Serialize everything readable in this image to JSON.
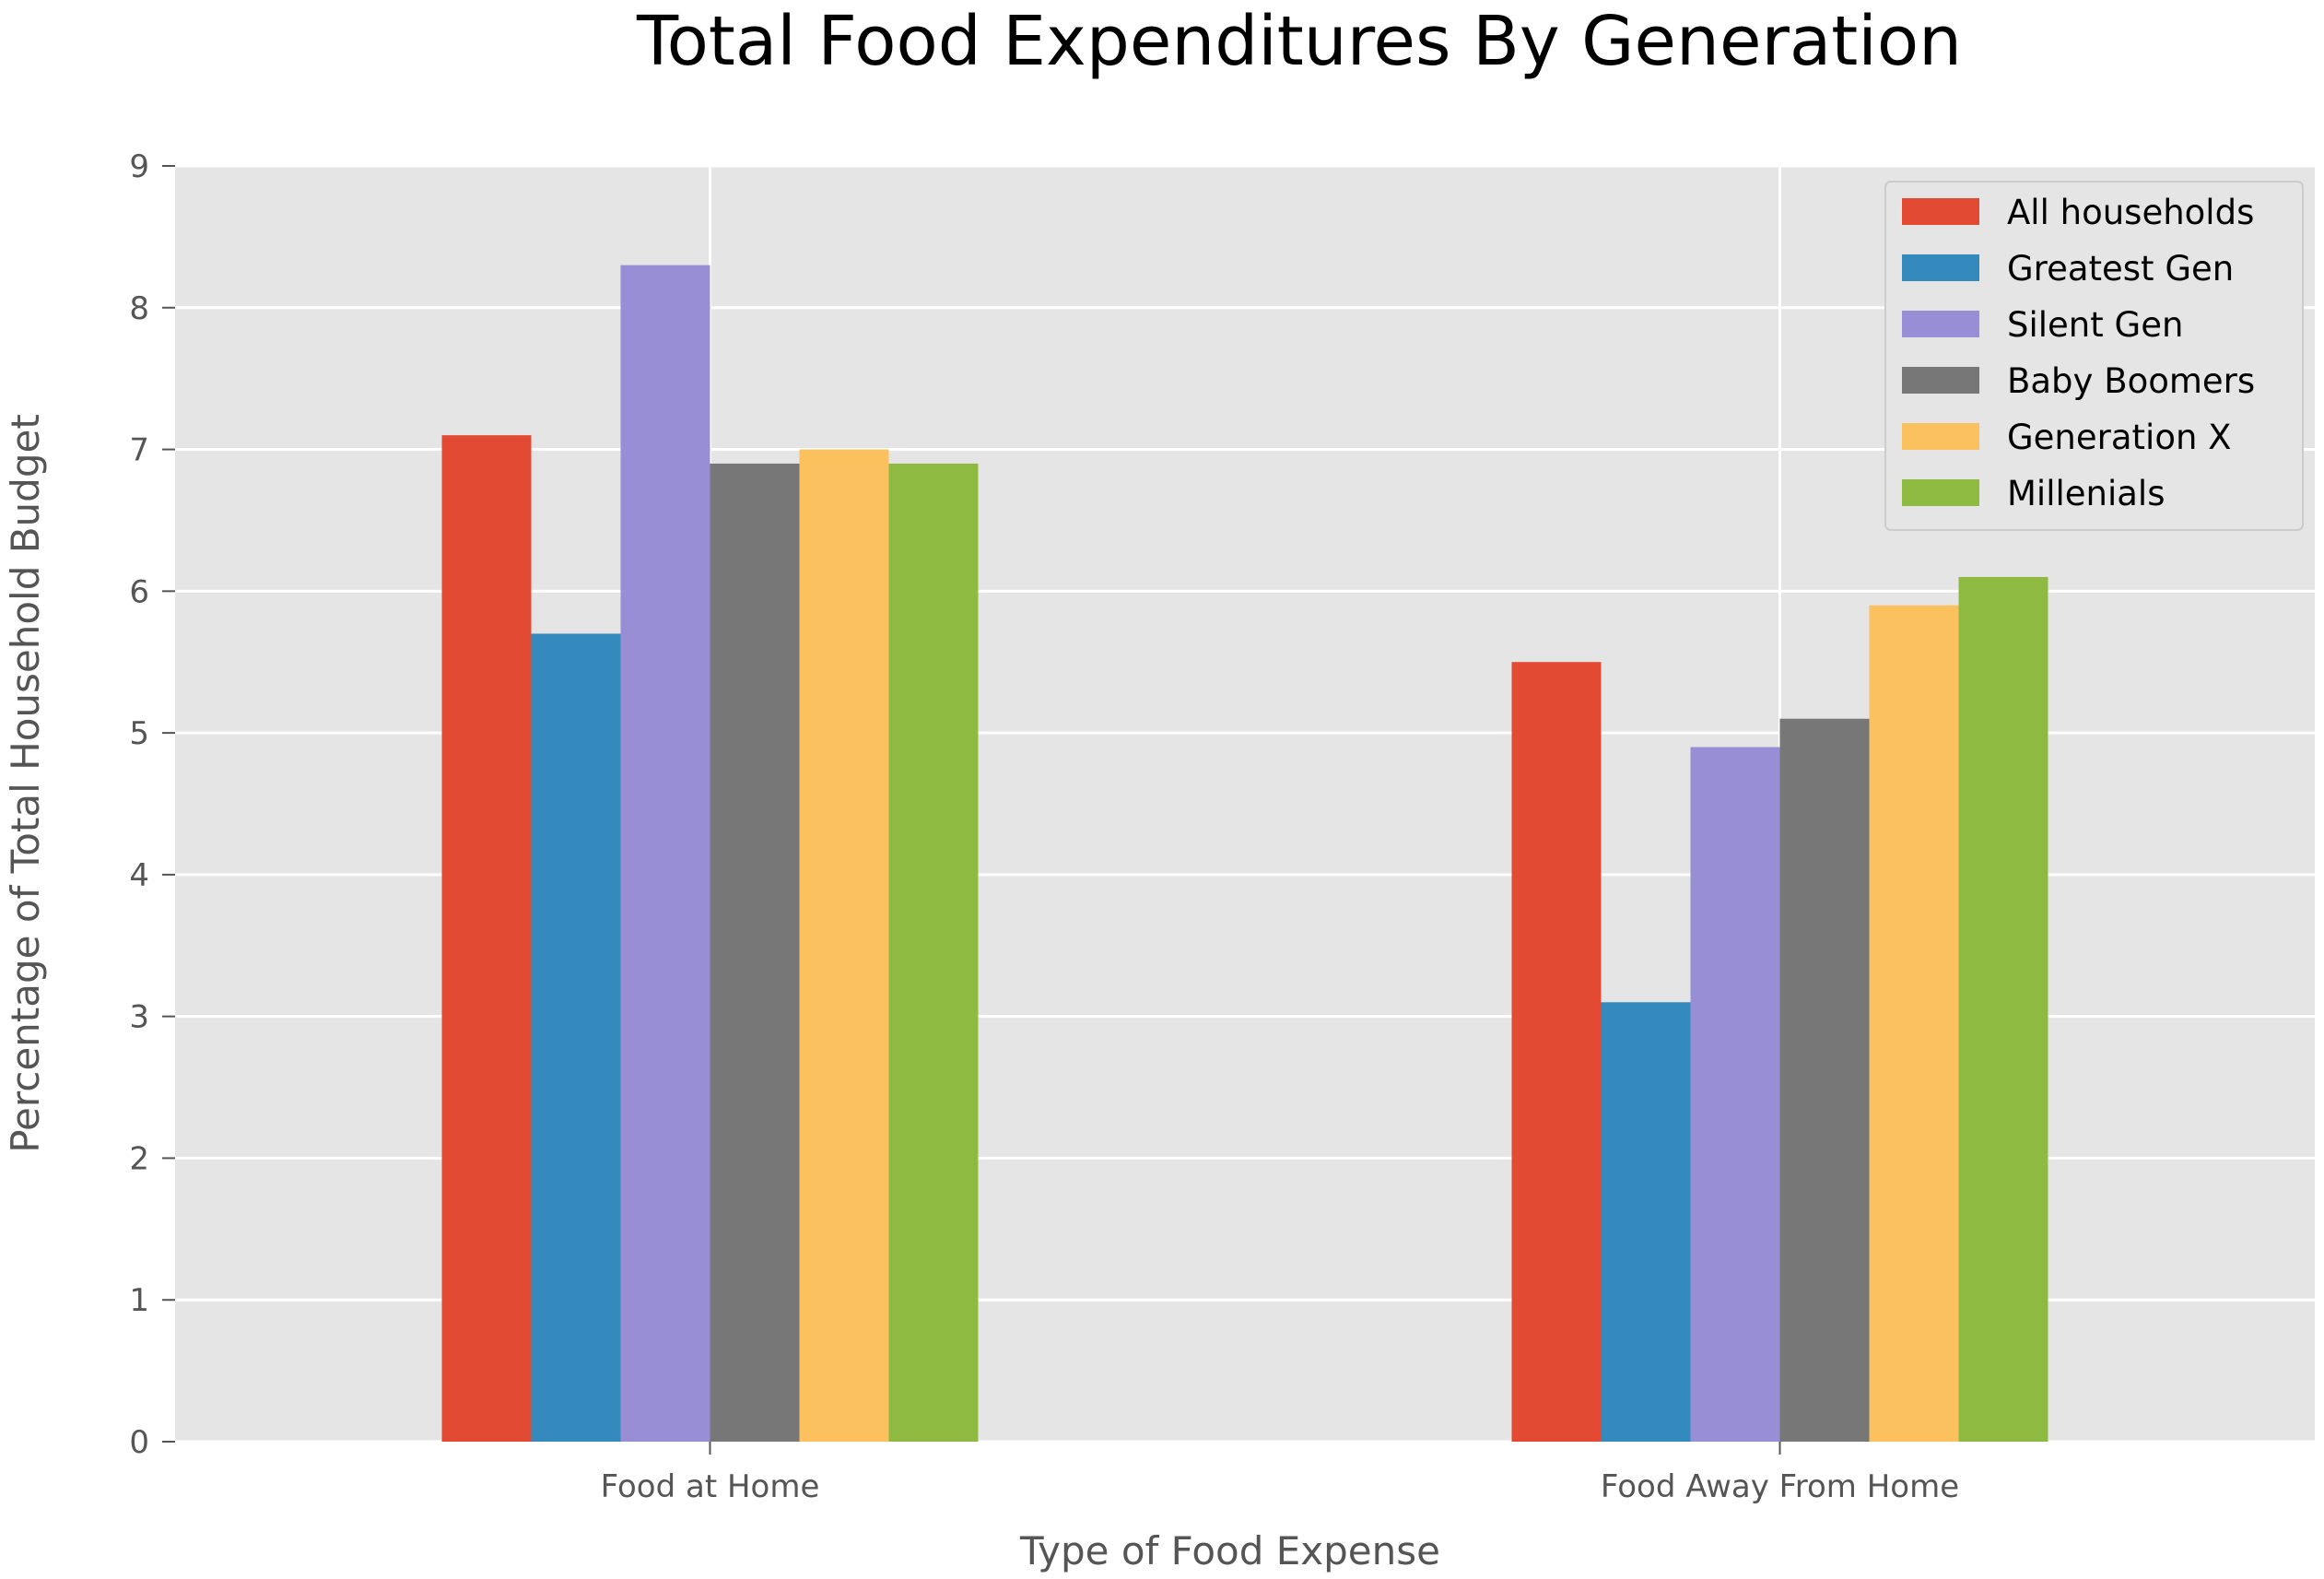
{
  "chart_data": {
    "type": "bar",
    "title": "Total Food Expenditures By Generation",
    "xlabel": "Type of Food Expense",
    "ylabel": "Percentage of Total Household Budget",
    "categories": [
      "Food at Home",
      "Food Away From Home"
    ],
    "series": [
      {
        "name": "All households",
        "color": "#e24a33",
        "values": [
          7.1,
          5.5
        ]
      },
      {
        "name": "Greatest Gen",
        "color": "#348abd",
        "values": [
          5.7,
          3.1
        ]
      },
      {
        "name": "Silent Gen",
        "color": "#988ed5",
        "values": [
          8.3,
          4.9
        ]
      },
      {
        "name": "Baby Boomers",
        "color": "#777777",
        "values": [
          6.9,
          5.1
        ]
      },
      {
        "name": "Generation X",
        "color": "#fbc15e",
        "values": [
          7.0,
          5.9
        ]
      },
      {
        "name": "Millenials",
        "color": "#8eba42",
        "values": [
          6.9,
          6.1
        ]
      }
    ],
    "ylim": [
      0,
      9
    ],
    "yticks": [
      "0",
      "1",
      "2",
      "3",
      "4",
      "5",
      "6",
      "7",
      "8",
      "9"
    ],
    "grid": true,
    "legend_position": "top-right",
    "colors": {
      "plot_background": "#e5e5e5",
      "grid": "#ffffff",
      "text": "#555555"
    }
  }
}
